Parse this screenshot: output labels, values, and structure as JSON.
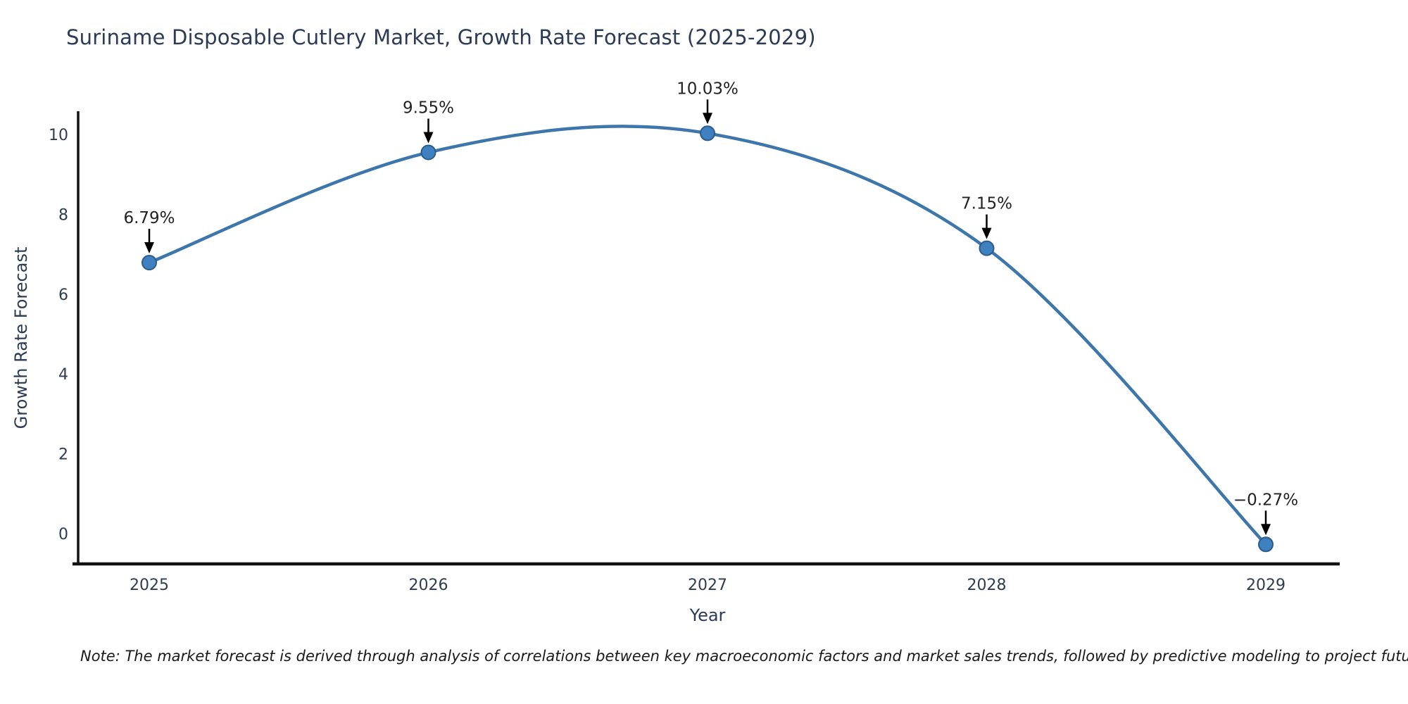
{
  "header": {
    "title": "Suriname Disposable Cutlery Market, Growth Rate Forecast (2025-2029)"
  },
  "note": {
    "text": "Note: The market forecast is derived through analysis of correlations between key macroeconomic factors and market sales trends, followed by predictive modeling to project future sales"
  },
  "chart_data": {
    "type": "line",
    "title": "Suriname Disposable Cutlery Market, Growth Rate Forecast (2025-2029)",
    "xlabel": "Year",
    "ylabel": "Growth Rate Forecast",
    "categories": [
      "2025",
      "2026",
      "2027",
      "2028",
      "2029"
    ],
    "values": [
      6.79,
      9.55,
      10.03,
      7.15,
      -0.27
    ],
    "point_labels": [
      "6.79%",
      "9.55%",
      "10.03%",
      "7.15%",
      "−0.27%"
    ],
    "yticks": [
      0,
      2,
      4,
      6,
      8,
      10
    ],
    "ylim": [
      -0.74,
      10.58
    ],
    "grid": false,
    "legend_position": "none",
    "line_style": "spline",
    "marker": "circle",
    "annotation_style": "value-above-with-down-arrow",
    "colors": {
      "line": "#3c76ab",
      "marker_fill": "#3e80c0",
      "marker_stroke": "#2b5c8a",
      "axis": "#111111",
      "tick_label": "#2f3d52",
      "annotation_text": "#222222",
      "annotation_arrow": "#000000",
      "title": "#2b3a55",
      "background": "#ffffff"
    }
  }
}
